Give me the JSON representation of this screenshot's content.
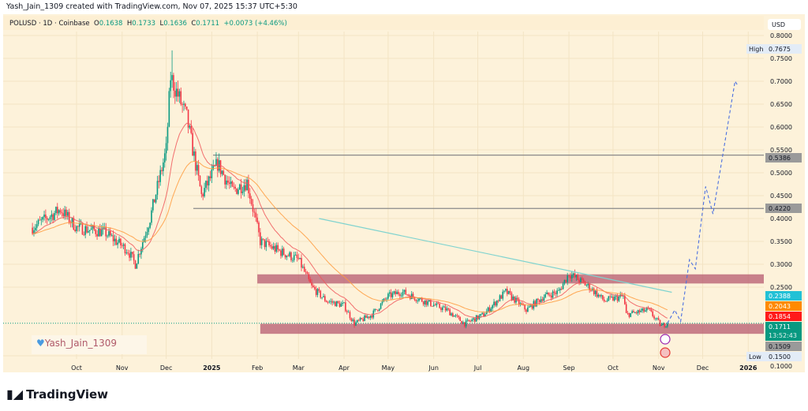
{
  "header": {
    "caption": "Yash_Jain_1309 created with TradingView.com, Nov 07, 2025 15:37 UTC+5:30"
  },
  "legend": {
    "symbol": "POLUSD · 1D · Coinbase",
    "o_label": "O",
    "o": "0.1638",
    "h_label": "H",
    "h": "0.1733",
    "l_label": "L",
    "l": "0.1636",
    "c_label": "C",
    "c": "0.1711",
    "change": "+0.0073 (+4.46%)"
  },
  "colors": {
    "up": "#089981",
    "down": "#f23645",
    "background": "#fdf2da",
    "zone": "#b5596f",
    "ma_fast": "#f0575a",
    "ma_slow": "#ff9b3c",
    "ma_long": "#7fd3cf",
    "projection": "#4a6fe0"
  },
  "price_axis": {
    "currency": "USD",
    "ticks": [
      "0.8000",
      "0.7500",
      "0.7000",
      "0.6500",
      "0.6000",
      "0.5500",
      "0.5000",
      "0.4500",
      "0.4000",
      "0.3500",
      "0.3000",
      "0.2500",
      "0.1000"
    ],
    "high_label": "High",
    "high": "0.7675",
    "low_label": "Low",
    "low": "0.1500",
    "badges": [
      {
        "value": "0.5386",
        "color": "#9a9a9a"
      },
      {
        "value": "0.4220",
        "color": "#9a9a9a"
      },
      {
        "value": "0.2388",
        "color": "#22c1d6"
      },
      {
        "value": "0.2043",
        "color": "#ff8a00"
      },
      {
        "value": "0.1854",
        "color": "#ff1a1a"
      },
      {
        "value": "0.1711",
        "color": "#089981",
        "countdown": "13:52:43"
      },
      {
        "value": "0.1509",
        "color": "#9a9a9a"
      }
    ]
  },
  "time_axis": {
    "ticks": [
      "Oct",
      "Nov",
      "Dec",
      "2025",
      "Feb",
      "Mar",
      "Apr",
      "May",
      "Jun",
      "Jul",
      "Aug",
      "Sep",
      "Oct",
      "Nov",
      "Dec",
      "2026"
    ]
  },
  "watermark": {
    "text": "Yash_Jain_1309",
    "icon": "heart-icon"
  },
  "footer": {
    "brand": "TradingView"
  },
  "chart_data": {
    "type": "candlestick",
    "symbol": "POLUSD",
    "interval": "1D",
    "exchange": "Coinbase",
    "y_scale": "linear",
    "ylim": [
      0.1,
      0.8
    ],
    "price_path": [
      [
        "2024-09-01",
        0.38
      ],
      [
        "2024-09-20",
        0.42
      ],
      [
        "2024-10-01",
        0.38
      ],
      [
        "2024-10-20",
        0.37
      ],
      [
        "2024-11-05",
        0.33
      ],
      [
        "2024-11-10",
        0.3
      ],
      [
        "2024-11-20",
        0.4
      ],
      [
        "2024-12-01",
        0.55
      ],
      [
        "2024-12-04",
        0.71
      ],
      [
        "2024-12-15",
        0.62
      ],
      [
        "2024-12-25",
        0.45
      ],
      [
        "2025-01-05",
        0.52
      ],
      [
        "2025-01-15",
        0.46
      ],
      [
        "2025-01-25",
        0.48
      ],
      [
        "2025-02-03",
        0.35
      ],
      [
        "2025-02-15",
        0.33
      ],
      [
        "2025-03-01",
        0.31
      ],
      [
        "2025-03-10",
        0.25
      ],
      [
        "2025-03-20",
        0.22
      ],
      [
        "2025-04-01",
        0.21
      ],
      [
        "2025-04-08",
        0.17
      ],
      [
        "2025-04-20",
        0.19
      ],
      [
        "2025-05-01",
        0.23
      ],
      [
        "2025-05-10",
        0.24
      ],
      [
        "2025-05-25",
        0.22
      ],
      [
        "2025-06-10",
        0.2
      ],
      [
        "2025-06-22",
        0.17
      ],
      [
        "2025-07-05",
        0.19
      ],
      [
        "2025-07-20",
        0.24
      ],
      [
        "2025-08-03",
        0.2
      ],
      [
        "2025-08-15",
        0.23
      ],
      [
        "2025-08-25",
        0.24
      ],
      [
        "2025-09-01",
        0.28
      ],
      [
        "2025-09-15",
        0.25
      ],
      [
        "2025-09-25",
        0.22
      ],
      [
        "2025-10-08",
        0.23
      ],
      [
        "2025-10-10",
        0.19
      ],
      [
        "2025-10-25",
        0.2
      ],
      [
        "2025-11-03",
        0.165
      ],
      [
        "2025-11-07",
        0.1711
      ]
    ],
    "high": 0.7675,
    "low": 0.15,
    "horizontal_lines": [
      0.5386,
      0.422
    ],
    "zones": [
      {
        "from": 0.258,
        "to": 0.278,
        "start": "2025-02-01"
      },
      {
        "from": 0.148,
        "to": 0.17,
        "start": "2025-02-03"
      }
    ],
    "long_ma": [
      [
        "2025-03-15",
        0.4
      ],
      [
        "2025-11-10",
        0.2388
      ]
    ],
    "projection": [
      [
        "2025-11-07",
        0.171
      ],
      [
        "2025-11-12",
        0.2
      ],
      [
        "2025-11-16",
        0.175
      ],
      [
        "2025-11-22",
        0.31
      ],
      [
        "2025-11-26",
        0.29
      ],
      [
        "2025-12-03",
        0.47
      ],
      [
        "2025-12-08",
        0.41
      ],
      [
        "2025-12-23",
        0.7
      ],
      [
        "2025-12-25",
        0.69
      ]
    ]
  }
}
